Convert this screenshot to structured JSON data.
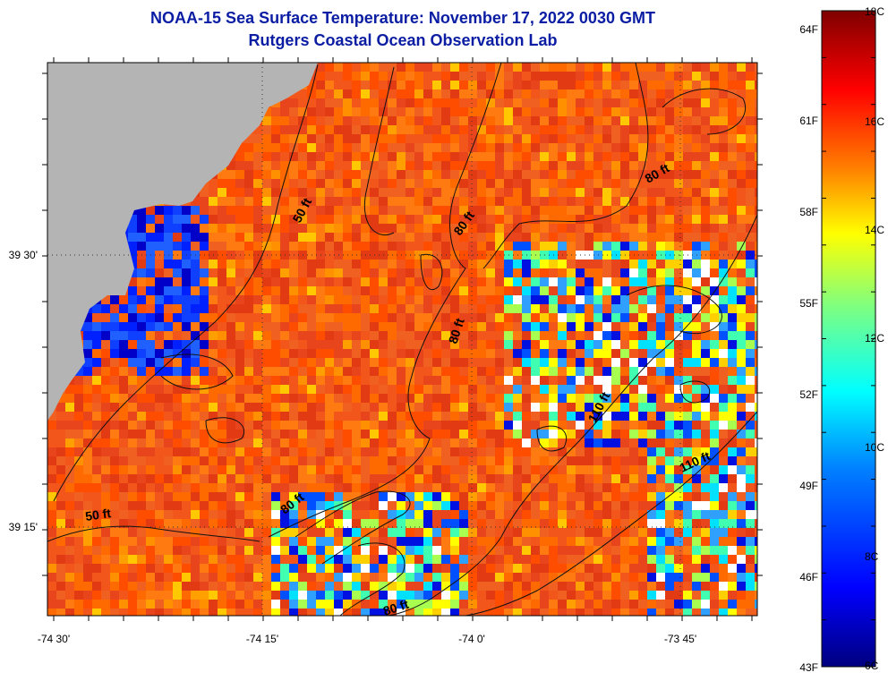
{
  "title": "NOAA-15 Sea Surface Temperature:  November 17, 2022 0030 GMT",
  "subtitle": "Rutgers Coastal Ocean Observation Lab",
  "x_ticks": [
    "-74 30'",
    "-74 15'",
    "-74 0'",
    "-73 45'"
  ],
  "y_ticks": [
    "39 30'",
    "39 15'"
  ],
  "depth_labels": [
    "50 ft",
    "50 ft",
    "80 ft",
    "80 ft",
    "80 ft",
    "80 ft",
    "80 ft",
    "110 ft",
    "110 ft"
  ],
  "colorbar": {
    "fahrenheit": [
      "64F",
      "61F",
      "58F",
      "55F",
      "52F",
      "49F",
      "46F",
      "43F"
    ],
    "celsius": [
      "18C",
      "16C",
      "14C",
      "12C",
      "10C",
      "8C",
      "6C"
    ],
    "colors": [
      "#00007f",
      "#0000ff",
      "#007fff",
      "#00ffff",
      "#7fff7f",
      "#ffff00",
      "#ff7f00",
      "#ff0000",
      "#7f0000"
    ]
  },
  "land_color": "#b4b4b4"
}
